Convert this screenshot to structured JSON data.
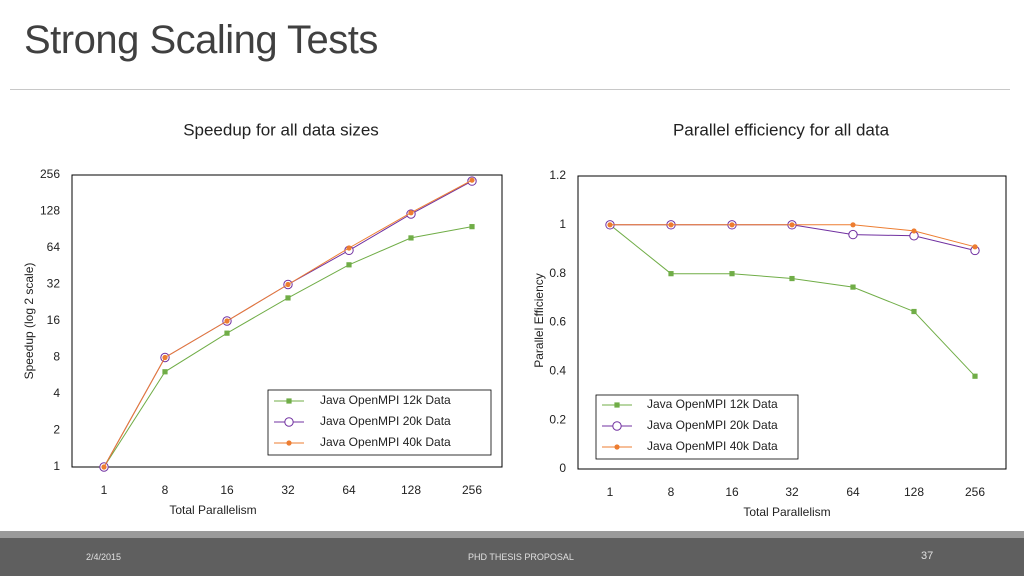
{
  "slide": {
    "title": "Strong Scaling Tests",
    "footer_date": "2/4/2015",
    "footer_center": "PHD THESIS PROPOSAL",
    "page_number": "37"
  },
  "colors": {
    "series": [
      "#70ad47",
      "#7030a0",
      "#ed7d31"
    ],
    "axis": "#000000",
    "text": "#222222"
  },
  "chart_data": [
    {
      "type": "line",
      "title": "Speedup for all data sizes",
      "xlabel": "Total Parallelism",
      "ylabel": "Speedup (log 2 scale)",
      "categories": [
        "1",
        "8",
        "16",
        "32",
        "64",
        "128",
        "256"
      ],
      "y_scale": "log2",
      "ylim": [
        1,
        256
      ],
      "y_ticks": [
        "1",
        "2",
        "4",
        "8",
        "16",
        "32",
        "64",
        "128",
        "256"
      ],
      "grid": false,
      "legend_position": "bottom-right",
      "series": [
        {
          "name": "Java OpenMPI 12k Data",
          "marker": "square",
          "values": [
            1,
            6.1,
            12.7,
            24.8,
            46.5,
            77.5,
            96
          ]
        },
        {
          "name": "Java OpenMPI 20k Data",
          "marker": "circle",
          "values": [
            1,
            8,
            16,
            32,
            61.2,
            122,
            228
          ]
        },
        {
          "name": "Java OpenMPI 40k Data",
          "marker": "dot",
          "values": [
            1,
            8,
            16,
            32,
            64,
            125,
            232
          ]
        }
      ]
    },
    {
      "type": "line",
      "title": "Parallel efficiency for all data",
      "xlabel": "Total Parallelism",
      "ylabel": "Parallel Efficiency",
      "categories": [
        "1",
        "8",
        "16",
        "32",
        "64",
        "128",
        "256"
      ],
      "ylim": [
        0,
        1.2
      ],
      "y_ticks": [
        "0",
        "0.2",
        "0.4",
        "0.6",
        "0.8",
        "1",
        "1.2"
      ],
      "grid": false,
      "legend_position": "bottom-right",
      "series": [
        {
          "name": "Java OpenMPI 12k Data",
          "marker": "square",
          "values": [
            1,
            0.8,
            0.8,
            0.78,
            0.745,
            0.645,
            0.38
          ]
        },
        {
          "name": "Java OpenMPI 20k Data",
          "marker": "circle",
          "values": [
            1,
            1,
            1,
            1,
            0.96,
            0.955,
            0.895
          ]
        },
        {
          "name": "Java OpenMPI 40k Data",
          "marker": "dot",
          "values": [
            1,
            1,
            1,
            1,
            1,
            0.975,
            0.91
          ]
        }
      ]
    }
  ]
}
